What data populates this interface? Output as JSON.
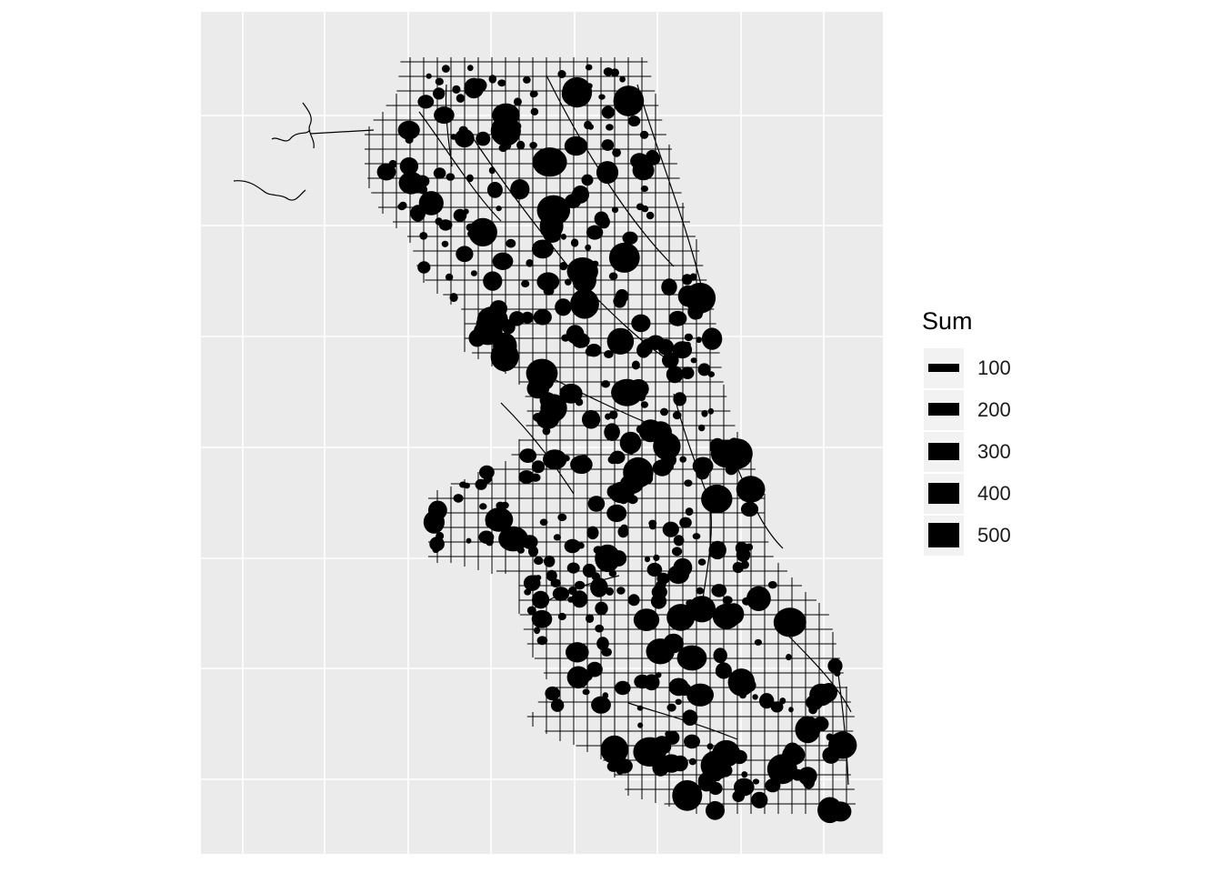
{
  "map": {
    "title": "",
    "background_color": "#ebebeb",
    "grid_color": "#ffffff",
    "mark_color": "#000000"
  },
  "legend": {
    "title": "Sum",
    "items": [
      {
        "label": "100",
        "value": 100
      },
      {
        "label": "200",
        "value": 200
      },
      {
        "label": "300",
        "value": 300
      },
      {
        "label": "400",
        "value": 400
      },
      {
        "label": "500",
        "value": 500
      }
    ]
  }
}
